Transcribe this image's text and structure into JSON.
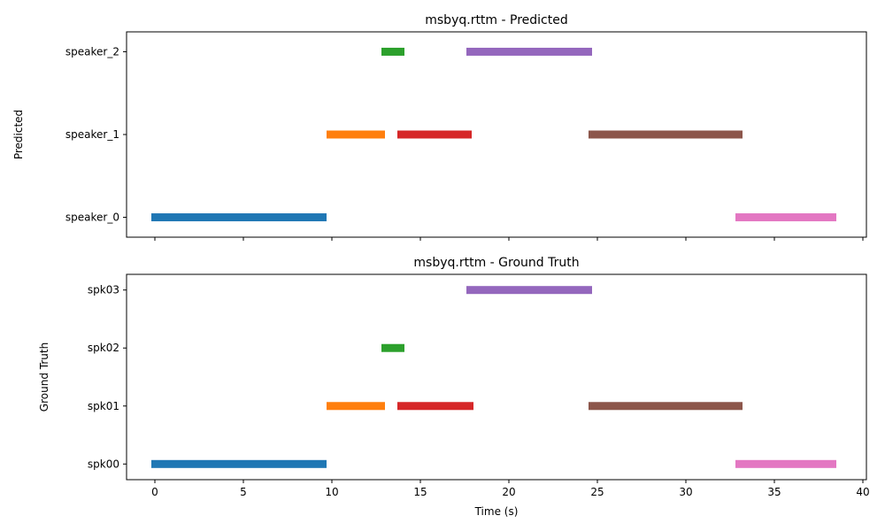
{
  "chart_data": [
    {
      "type": "timeline",
      "title": "msbyq.rttm - Predicted",
      "ylabel": "Predicted",
      "xlabel": "",
      "xlim": [
        -1.6,
        40.2
      ],
      "xticks": [
        0,
        5,
        10,
        15,
        20,
        25,
        30,
        35,
        40
      ],
      "show_xtick_labels": false,
      "grid": false,
      "speakers": [
        "speaker_0",
        "speaker_1",
        "speaker_2"
      ],
      "segments": [
        {
          "speaker": "speaker_0",
          "start": -0.2,
          "end": 9.7,
          "color": "#1f77b4"
        },
        {
          "speaker": "speaker_1",
          "start": 9.7,
          "end": 13.0,
          "color": "#ff7f0e"
        },
        {
          "speaker": "speaker_2",
          "start": 12.8,
          "end": 14.1,
          "color": "#2ca02c"
        },
        {
          "speaker": "speaker_1",
          "start": 13.7,
          "end": 17.9,
          "color": "#d62728"
        },
        {
          "speaker": "speaker_2",
          "start": 17.6,
          "end": 24.7,
          "color": "#9467bd"
        },
        {
          "speaker": "speaker_1",
          "start": 24.5,
          "end": 33.2,
          "color": "#8c564b"
        },
        {
          "speaker": "speaker_0",
          "start": 32.8,
          "end": 38.5,
          "color": "#e377c2"
        }
      ]
    },
    {
      "type": "timeline",
      "title": "msbyq.rttm - Ground Truth",
      "ylabel": "Ground Truth",
      "xlabel": "Time (s)",
      "xlim": [
        -1.6,
        40.2
      ],
      "xticks": [
        0,
        5,
        10,
        15,
        20,
        25,
        30,
        35,
        40
      ],
      "show_xtick_labels": true,
      "grid": false,
      "speakers": [
        "spk00",
        "spk01",
        "spk02",
        "spk03"
      ],
      "segments": [
        {
          "speaker": "spk00",
          "start": -0.2,
          "end": 9.7,
          "color": "#1f77b4"
        },
        {
          "speaker": "spk01",
          "start": 9.7,
          "end": 13.0,
          "color": "#ff7f0e"
        },
        {
          "speaker": "spk02",
          "start": 12.8,
          "end": 14.1,
          "color": "#2ca02c"
        },
        {
          "speaker": "spk01",
          "start": 13.7,
          "end": 18.0,
          "color": "#d62728"
        },
        {
          "speaker": "spk03",
          "start": 17.6,
          "end": 24.7,
          "color": "#9467bd"
        },
        {
          "speaker": "spk01",
          "start": 24.5,
          "end": 33.2,
          "color": "#8c564b"
        },
        {
          "speaker": "spk00",
          "start": 32.8,
          "end": 38.5,
          "color": "#e377c2"
        }
      ]
    }
  ]
}
